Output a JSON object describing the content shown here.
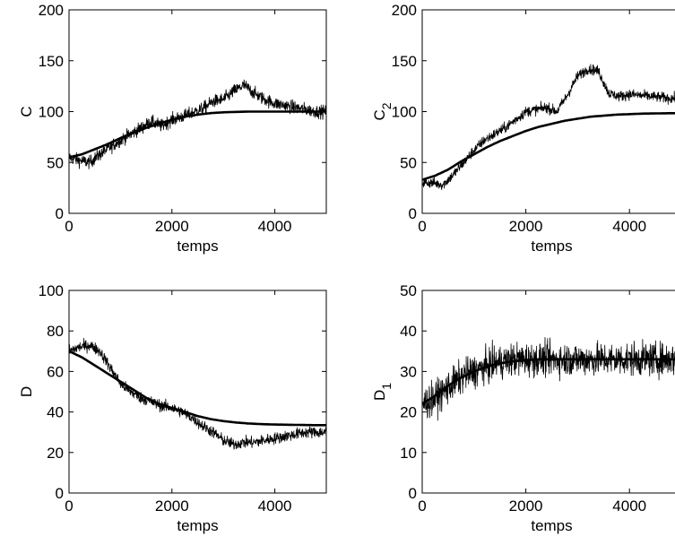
{
  "chart_data": [
    {
      "type": "line",
      "xlabel": "temps",
      "ylabel": "C",
      "ylabel_sub": "",
      "xlim": [
        0,
        5000
      ],
      "ylim": [
        0,
        200
      ],
      "xticks": [
        0,
        2000,
        4000
      ],
      "yticks": [
        0,
        50,
        100,
        150,
        200
      ],
      "grid": false,
      "series": [
        {
          "style": "noisy",
          "x": [
            0,
            200,
            400,
            600,
            800,
            1000,
            1200,
            1400,
            1600,
            1800,
            2000,
            2200,
            2400,
            2600,
            2800,
            3000,
            3200,
            3400,
            3600,
            3800,
            4000,
            4200,
            4400,
            4600,
            4800,
            5000
          ],
          "values": [
            55,
            52,
            50,
            58,
            65,
            72,
            78,
            84,
            90,
            86,
            92,
            95,
            99,
            103,
            110,
            112,
            120,
            126,
            118,
            112,
            108,
            106,
            104,
            102,
            100,
            100
          ]
        },
        {
          "style": "smooth",
          "x": [
            0,
            250,
            500,
            750,
            1000,
            1250,
            1500,
            1750,
            2000,
            2250,
            2500,
            2750,
            3000,
            3250,
            3500,
            3750,
            4000,
            4250,
            4500,
            4750,
            5000
          ],
          "values": [
            55,
            58,
            63,
            68,
            74,
            79,
            84,
            88,
            92,
            95,
            97,
            98.5,
            99.3,
            99.7,
            100,
            100,
            100,
            100,
            100,
            100,
            100
          ]
        }
      ]
    },
    {
      "type": "line",
      "xlabel": "temps",
      "ylabel": "C",
      "ylabel_sub": "2",
      "xlim": [
        0,
        5000
      ],
      "ylim": [
        0,
        200
      ],
      "xticks": [
        0,
        2000,
        4000
      ],
      "yticks": [
        0,
        50,
        100,
        150,
        200
      ],
      "grid": false,
      "series": [
        {
          "style": "noisy",
          "x": [
            0,
            200,
            400,
            600,
            800,
            1000,
            1200,
            1400,
            1600,
            1800,
            2000,
            2200,
            2400,
            2600,
            2800,
            3000,
            3200,
            3400,
            3600,
            3800,
            4000,
            4200,
            4400,
            4600,
            4800,
            5000
          ],
          "values": [
            30,
            30,
            28,
            38,
            50,
            62,
            72,
            78,
            84,
            92,
            100,
            102,
            104,
            100,
            116,
            135,
            142,
            140,
            118,
            115,
            117,
            116,
            115,
            114,
            113,
            113
          ]
        },
        {
          "style": "smooth",
          "x": [
            0,
            250,
            500,
            750,
            1000,
            1250,
            1500,
            1750,
            2000,
            2250,
            2500,
            2750,
            3000,
            3250,
            3500,
            3750,
            4000,
            4250,
            4500,
            4750,
            5000
          ],
          "values": [
            33,
            37,
            43,
            51,
            58,
            65,
            71,
            76,
            81,
            85,
            88,
            91,
            93,
            95,
            96,
            97,
            97.5,
            98,
            98.2,
            98.4,
            98.5
          ]
        }
      ]
    },
    {
      "type": "line",
      "xlabel": "temps",
      "ylabel": "D",
      "ylabel_sub": "",
      "xlim": [
        0,
        5000
      ],
      "ylim": [
        0,
        100
      ],
      "xticks": [
        0,
        2000,
        4000
      ],
      "yticks": [
        0,
        20,
        40,
        60,
        80,
        100
      ],
      "grid": false,
      "series": [
        {
          "style": "noisy",
          "x": [
            0,
            200,
            400,
            600,
            800,
            1000,
            1200,
            1400,
            1600,
            1800,
            2000,
            2200,
            2400,
            2600,
            2800,
            3000,
            3200,
            3400,
            3600,
            3800,
            4000,
            4200,
            4400,
            4600,
            4800,
            5000
          ],
          "values": [
            70,
            72,
            73,
            70,
            62,
            54,
            50,
            47,
            45,
            43,
            42,
            40,
            37,
            33,
            30,
            26,
            24,
            25,
            25,
            26,
            27,
            28,
            29,
            30,
            30,
            30
          ]
        },
        {
          "style": "smooth",
          "x": [
            0,
            250,
            500,
            750,
            1000,
            1250,
            1500,
            1750,
            2000,
            2250,
            2500,
            2750,
            3000,
            3250,
            3500,
            3750,
            4000,
            4250,
            4500,
            4750,
            5000
          ],
          "values": [
            70,
            67,
            63,
            59,
            55,
            51,
            47,
            44,
            42,
            40,
            38,
            36.5,
            35.5,
            34.8,
            34.3,
            34,
            33.8,
            33.7,
            33.6,
            33.5,
            33.5
          ]
        }
      ]
    },
    {
      "type": "line",
      "xlabel": "temps",
      "ylabel": "D",
      "ylabel_sub": "1",
      "xlim": [
        0,
        5000
      ],
      "ylim": [
        0,
        50
      ],
      "xticks": [
        0,
        2000,
        4000
      ],
      "yticks": [
        0,
        10,
        20,
        30,
        40,
        50
      ],
      "grid": false,
      "series": [
        {
          "style": "noisy",
          "x": [
            0,
            200,
            400,
            600,
            800,
            1000,
            1200,
            1400,
            1600,
            1800,
            2000,
            2200,
            2400,
            2600,
            2800,
            3000,
            3200,
            3400,
            3600,
            3800,
            4000,
            4200,
            4400,
            4600,
            4800,
            5000
          ],
          "values": [
            22,
            23,
            25,
            27,
            29,
            30,
            31,
            32,
            32.5,
            33,
            33,
            33,
            33,
            33,
            33,
            33,
            33,
            33,
            33,
            33,
            33,
            33,
            33,
            33,
            33,
            33
          ]
        },
        {
          "style": "smooth",
          "x": [
            0,
            250,
            500,
            750,
            1000,
            1250,
            1500,
            1750,
            2000,
            2250,
            2500,
            2750,
            3000,
            3250,
            3500,
            3750,
            4000,
            4250,
            4500,
            4750,
            5000
          ],
          "values": [
            22,
            24,
            26.5,
            28.5,
            30,
            31.2,
            32,
            32.5,
            32.8,
            33,
            33,
            33,
            33,
            33,
            33,
            33,
            33,
            33,
            33,
            33,
            33
          ]
        }
      ]
    }
  ]
}
